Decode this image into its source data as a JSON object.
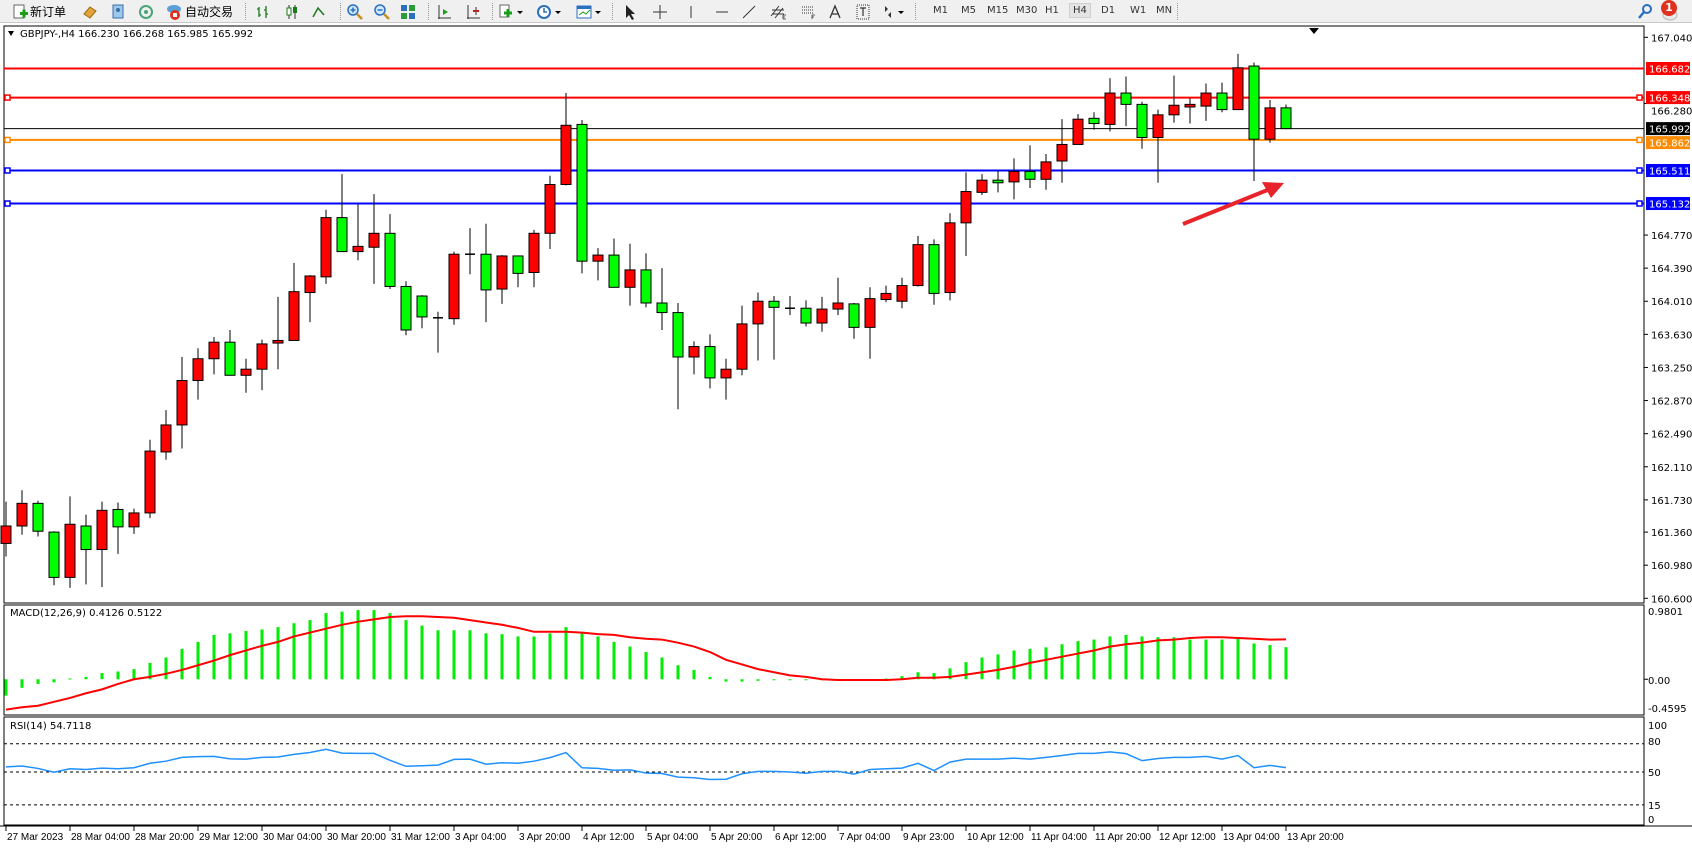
{
  "toolbar": {
    "new_order_label": "新订单",
    "auto_trading_label": "自动交易",
    "timeframes": [
      "M1",
      "M5",
      "M15",
      "M30",
      "H1",
      "H4",
      "D1",
      "W1",
      "MN"
    ],
    "selected_timeframe": "H4",
    "notification_count": "1"
  },
  "chart": {
    "header": "GBPJPY-,H4  166.230 166.268 165.985 165.992",
    "colors": {
      "bull": "#ff0000",
      "bear": "#00ff00",
      "macd_hist": "#00ee00",
      "macd_signal": "#ff0000",
      "rsi": "#1e90ff",
      "arrow": "#e8232a"
    }
  },
  "chart_data": {
    "type": "candlestick",
    "symbol": "GBPJPY-",
    "timeframe": "H4",
    "ylim": [
      160.6,
      167.04
    ],
    "price_ticks": [
      "167.040",
      "166.280",
      "164.770",
      "164.390",
      "164.010",
      "163.630",
      "163.250",
      "162.870",
      "162.490",
      "162.110",
      "161.730",
      "161.360",
      "160.980",
      "160.600"
    ],
    "time_labels": [
      "27 Mar 2023",
      "28 Mar 04:00",
      "28 Mar 20:00",
      "29 Mar 12:00",
      "30 Mar 04:00",
      "30 Mar 20:00",
      "31 Mar 12:00",
      "3 Apr 04:00",
      "3 Apr 20:00",
      "4 Apr 12:00",
      "5 Apr 04:00",
      "5 Apr 20:00",
      "6 Apr 12:00",
      "7 Apr 04:00",
      "9 Apr 23:00",
      "10 Apr 12:00",
      "11 Apr 04:00",
      "11 Apr 20:00",
      "12 Apr 12:00",
      "13 Apr 04:00",
      "13 Apr 20:00"
    ],
    "fields": [
      "open",
      "high",
      "low",
      "close"
    ],
    "candles": [
      [
        161.23,
        161.71,
        161.08,
        161.43
      ],
      [
        161.43,
        161.84,
        161.33,
        161.69
      ],
      [
        161.69,
        161.72,
        161.31,
        161.37
      ],
      [
        161.36,
        161.37,
        160.75,
        160.84
      ],
      [
        160.84,
        161.77,
        160.72,
        161.45
      ],
      [
        161.43,
        161.56,
        160.76,
        161.16
      ],
      [
        161.16,
        161.71,
        160.73,
        161.61
      ],
      [
        161.62,
        161.7,
        161.11,
        161.42
      ],
      [
        161.42,
        161.63,
        161.34,
        161.58
      ],
      [
        161.58,
        162.42,
        161.52,
        162.29
      ],
      [
        162.28,
        162.76,
        162.19,
        162.59
      ],
      [
        162.59,
        163.37,
        162.32,
        163.1
      ],
      [
        163.1,
        163.47,
        162.88,
        163.35
      ],
      [
        163.35,
        163.6,
        163.17,
        163.54
      ],
      [
        163.54,
        163.68,
        163.16,
        163.16
      ],
      [
        163.16,
        163.35,
        162.96,
        163.23
      ],
      [
        163.23,
        163.57,
        162.99,
        163.52
      ],
      [
        163.53,
        164.06,
        163.23,
        163.56
      ],
      [
        163.56,
        164.45,
        163.56,
        164.12
      ],
      [
        164.11,
        164.31,
        163.77,
        164.3
      ],
      [
        164.29,
        165.06,
        164.21,
        164.97
      ],
      [
        164.97,
        165.47,
        164.58,
        164.58
      ],
      [
        164.58,
        165.12,
        164.48,
        164.64
      ],
      [
        164.63,
        165.24,
        164.21,
        164.79
      ],
      [
        164.79,
        165.01,
        164.15,
        164.18
      ],
      [
        164.18,
        164.24,
        163.62,
        163.68
      ],
      [
        164.07,
        164.08,
        163.7,
        163.83
      ],
      [
        163.82,
        163.89,
        163.42,
        163.82
      ],
      [
        163.81,
        164.58,
        163.74,
        164.55
      ],
      [
        164.55,
        164.85,
        164.32,
        164.55
      ],
      [
        164.55,
        164.9,
        163.77,
        164.14
      ],
      [
        164.15,
        164.54,
        163.98,
        164.53
      ],
      [
        164.53,
        164.53,
        164.17,
        164.33
      ],
      [
        164.34,
        164.83,
        164.17,
        164.79
      ],
      [
        164.79,
        165.45,
        164.61,
        165.35
      ],
      [
        165.35,
        166.4,
        165.34,
        166.03
      ],
      [
        166.04,
        166.09,
        164.33,
        164.47
      ],
      [
        164.47,
        164.62,
        164.25,
        164.54
      ],
      [
        164.54,
        164.73,
        164.17,
        164.17
      ],
      [
        164.17,
        164.67,
        163.96,
        164.37
      ],
      [
        164.37,
        164.56,
        163.94,
        163.99
      ],
      [
        163.99,
        164.39,
        163.68,
        163.88
      ],
      [
        163.88,
        163.99,
        162.77,
        163.37
      ],
      [
        163.37,
        163.55,
        163.17,
        163.49
      ],
      [
        163.49,
        163.63,
        163.01,
        163.13
      ],
      [
        163.13,
        163.35,
        162.88,
        163.23
      ],
      [
        163.23,
        163.96,
        163.16,
        163.75
      ],
      [
        163.75,
        164.11,
        163.33,
        164.01
      ],
      [
        164.01,
        164.07,
        163.34,
        163.94
      ],
      [
        163.93,
        164.07,
        163.85,
        163.93
      ],
      [
        163.93,
        164.02,
        163.72,
        163.76
      ],
      [
        163.76,
        164.06,
        163.66,
        163.92
      ],
      [
        163.92,
        164.28,
        163.85,
        163.99
      ],
      [
        163.98,
        163.99,
        163.58,
        163.71
      ],
      [
        163.71,
        164.17,
        163.35,
        164.04
      ],
      [
        164.03,
        164.19,
        164.0,
        164.1
      ],
      [
        164.01,
        164.28,
        163.93,
        164.19
      ],
      [
        164.19,
        164.76,
        164.18,
        164.66
      ],
      [
        164.66,
        164.72,
        163.97,
        164.1
      ],
      [
        164.11,
        165.02,
        164.02,
        164.91
      ],
      [
        164.91,
        165.49,
        164.53,
        165.27
      ],
      [
        165.26,
        165.47,
        165.23,
        165.4
      ],
      [
        165.4,
        165.51,
        165.26,
        165.37
      ],
      [
        165.38,
        165.65,
        165.18,
        165.5
      ],
      [
        165.5,
        165.8,
        165.31,
        165.41
      ],
      [
        165.41,
        165.7,
        165.29,
        165.61
      ],
      [
        165.62,
        166.1,
        165.37,
        165.81
      ],
      [
        165.81,
        166.16,
        165.81,
        166.1
      ],
      [
        166.11,
        166.18,
        165.98,
        166.05
      ],
      [
        166.04,
        166.57,
        165.96,
        166.4
      ],
      [
        166.4,
        166.59,
        166.02,
        166.27
      ],
      [
        166.27,
        166.3,
        165.76,
        165.89
      ],
      [
        165.89,
        166.21,
        165.37,
        166.15
      ],
      [
        166.15,
        166.6,
        166.06,
        166.26
      ],
      [
        166.24,
        166.34,
        166.05,
        166.27
      ],
      [
        166.25,
        166.51,
        166.08,
        166.4
      ],
      [
        166.4,
        166.52,
        166.18,
        166.21
      ],
      [
        166.21,
        166.85,
        166.21,
        166.69
      ],
      [
        166.71,
        166.75,
        165.39,
        165.87
      ],
      [
        165.87,
        166.32,
        165.83,
        166.23
      ],
      [
        166.23,
        166.268,
        165.985,
        165.992
      ]
    ],
    "horizontal_lines": [
      {
        "price": "166.682",
        "color": "#ff0000",
        "handle": false
      },
      {
        "price": "166.348",
        "color": "#ff0000",
        "handle": true
      },
      {
        "price": "165.862",
        "color": "#ff8c00",
        "handle": true
      },
      {
        "price": "165.511",
        "color": "#0000ff",
        "handle": true
      },
      {
        "price": "165.132",
        "color": "#0000ff",
        "handle": true
      }
    ],
    "current_price": "165.992",
    "macd": {
      "label": "MACD(12,26,9) 0.4126 0.5122",
      "ylim": [
        -0.4595,
        0.9801
      ],
      "ticks": [
        "0.9801",
        "0.00",
        "-0.4595"
      ],
      "histogram": [
        -0.21,
        -0.11,
        -0.06,
        -0.04,
        0.01,
        0.03,
        0.08,
        0.1,
        0.13,
        0.21,
        0.28,
        0.39,
        0.48,
        0.57,
        0.59,
        0.62,
        0.64,
        0.67,
        0.72,
        0.76,
        0.85,
        0.87,
        0.89,
        0.89,
        0.85,
        0.76,
        0.69,
        0.63,
        0.63,
        0.63,
        0.59,
        0.58,
        0.55,
        0.55,
        0.59,
        0.67,
        0.59,
        0.55,
        0.48,
        0.42,
        0.35,
        0.28,
        0.18,
        0.12,
        0.03,
        -0.03,
        -0.03,
        -0.02,
        -0.01,
        -0.01,
        -0.01,
        0,
        0,
        0,
        0,
        0.01,
        0.04,
        0.09,
        0.08,
        0.14,
        0.22,
        0.28,
        0.32,
        0.37,
        0.39,
        0.41,
        0.45,
        0.49,
        0.51,
        0.55,
        0.57,
        0.55,
        0.54,
        0.54,
        0.51,
        0.51,
        0.51,
        0.53,
        0.46,
        0.44,
        0.4126
      ],
      "signal": [
        -0.39,
        -0.36,
        -0.34,
        -0.29,
        -0.24,
        -0.18,
        -0.13,
        -0.06,
        0.0,
        0.03,
        0.07,
        0.12,
        0.18,
        0.24,
        0.31,
        0.37,
        0.43,
        0.48,
        0.55,
        0.6,
        0.65,
        0.7,
        0.74,
        0.77,
        0.8,
        0.81,
        0.81,
        0.8,
        0.79,
        0.76,
        0.73,
        0.7,
        0.66,
        0.61,
        0.61,
        0.61,
        0.6,
        0.58,
        0.57,
        0.54,
        0.52,
        0.51,
        0.47,
        0.42,
        0.35,
        0.25,
        0.19,
        0.13,
        0.09,
        0.05,
        0.03,
        0,
        -0.01,
        -0.01,
        -0.01,
        -0.01,
        0,
        0.02,
        0.02,
        0.03,
        0.06,
        0.09,
        0.12,
        0.16,
        0.21,
        0.25,
        0.29,
        0.33,
        0.37,
        0.42,
        0.45,
        0.47,
        0.5,
        0.51,
        0.53,
        0.54,
        0.54,
        0.53,
        0.52,
        0.51,
        0.5122
      ]
    },
    "rsi": {
      "label": "RSI(14) 54.7118",
      "ylim": [
        0,
        100
      ],
      "ticks": [
        "100",
        "80",
        "50",
        "15",
        "0"
      ],
      "levels": [
        80,
        50,
        15
      ],
      "values": [
        55.4,
        56.4,
        53.8,
        49.7,
        53.5,
        52.6,
        54.1,
        53.5,
        54.5,
        59.3,
        61.5,
        65.6,
        66.3,
        66.6,
        64.0,
        63.7,
        65.6,
        66.0,
        68.8,
        70.7,
        74.2,
        70.1,
        69.8,
        69.8,
        62.4,
        56.1,
        56.7,
        57.3,
        63.4,
        63.7,
        58.3,
        59.9,
        59.3,
        61.5,
        65.3,
        70.7,
        54.5,
        53.8,
        51.9,
        52.2,
        49.0,
        48.4,
        44.6,
        43.9,
        42.0,
        42.3,
        48.1,
        50.6,
        50.6,
        50.0,
        48.7,
        50.6,
        50.6,
        47.8,
        52.6,
        53.5,
        54.1,
        59.3,
        51.6,
        60.5,
        63.7,
        63.7,
        63.7,
        64.7,
        63.7,
        65.6,
        67.5,
        69.8,
        69.8,
        71.4,
        69.5,
        62.1,
        64.4,
        65.6,
        65.6,
        66.6,
        63.7,
        67.5,
        54.5,
        57.0,
        54.7118
      ]
    }
  }
}
